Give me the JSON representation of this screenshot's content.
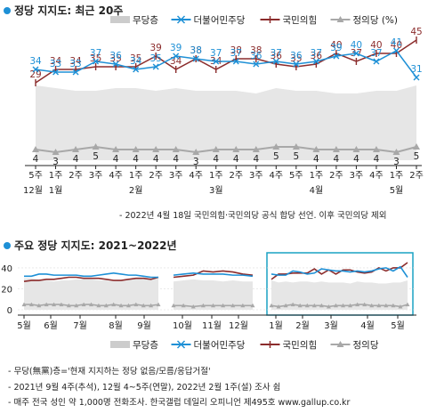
{
  "title1": "정당 지지도: 최근 20주",
  "title2": "주요 정당 지지도: 2021~2022년",
  "legend": [
    {
      "name": "무당층",
      "color": "#cccccc",
      "kind": "area"
    },
    {
      "name": "더불어민주당",
      "color": "#1e90d6",
      "kind": "line"
    },
    {
      "name": "국민의힘",
      "color": "#8b2c2c",
      "kind": "line"
    },
    {
      "name": "정의당 (%)",
      "color": "#a8a8a8",
      "kind": "line"
    }
  ],
  "legend2_last": "정의당",
  "note_top": "- 2022년 4월 18일 국민의힘·국민의당 공식 합당 선언. 이후 국민의당 제외",
  "notes_bottom": [
    "- 무당(無黨)층='현재 지지하는 정당 없음/모름/응답거절'",
    "- 2021년 9월 4주(추석), 12월 4~5주(연말), 2022년 2월 1주(설) 조사 쉼",
    "- 매주 전국 성인 약 1,000명 전화조사. 한국갤럽 데일리 오피니언 제495호 www.gallup.co.kr"
  ],
  "chart_data": [
    {
      "type": "line",
      "title": "정당 지지도: 최근 20주",
      "x": [
        "5주",
        "1주",
        "2주",
        "3주",
        "4주",
        "1주",
        "2주",
        "3주",
        "4주",
        "1주",
        "2주",
        "3주",
        "4주",
        "5주",
        "1주",
        "2주",
        "3주",
        "4주",
        "1주",
        "2주"
      ],
      "month_labels": [
        {
          "label": "12월",
          "index": 0
        },
        {
          "label": "1월",
          "index": 1
        },
        {
          "label": "2월",
          "index": 5
        },
        {
          "label": "3월",
          "index": 9
        },
        {
          "label": "4월",
          "index": 14
        },
        {
          "label": "5월",
          "index": 18
        }
      ],
      "series": [
        {
          "name": "무당층",
          "values": [
            28,
            27,
            26,
            26,
            27,
            27,
            26,
            27,
            26,
            26,
            26,
            25,
            27,
            26,
            26,
            25,
            25,
            26,
            26,
            28
          ]
        },
        {
          "name": "더불어민주당",
          "values": [
            34,
            33,
            33,
            37,
            36,
            34,
            35,
            39,
            38,
            37,
            37,
            36,
            37,
            36,
            37,
            39,
            40,
            37,
            41,
            31
          ]
        },
        {
          "name": "국민의힘",
          "values": [
            29,
            34,
            34,
            35,
            35,
            35,
            39,
            34,
            38,
            34,
            38,
            38,
            36,
            35,
            36,
            40,
            37,
            40,
            40,
            45
          ]
        },
        {
          "name": "정의당 (%)",
          "values": [
            4,
            3,
            4,
            5,
            4,
            4,
            4,
            4,
            3,
            4,
            4,
            4,
            5,
            5,
            4,
            4,
            4,
            4,
            3,
            5
          ]
        }
      ],
      "ylim": [
        0,
        48
      ]
    },
    {
      "type": "line",
      "title": "주요 정당 지지도: 2021~2022년",
      "x_months": [
        "5월",
        "6월",
        "7월",
        "8월",
        "9월",
        "10월",
        "11월",
        "12월",
        "1월",
        "2월",
        "3월",
        "4월",
        "5월"
      ],
      "yticks": [
        0,
        20,
        40
      ],
      "ylim": [
        0,
        45
      ],
      "series": [
        {
          "name": "무당층",
          "segments": [
            [
              30,
              30,
              29,
              28,
              27,
              28,
              28,
              29,
              29,
              29,
              28,
              28,
              27,
              28,
              29,
              30,
              29,
              30,
              30
            ],
            [
              27,
              28,
              29,
              28,
              28,
              27,
              28,
              27,
              27
            ],
            [
              28,
              26,
              27,
              26,
              27,
              27,
              26,
              27,
              26,
              26,
              26,
              25,
              27,
              26,
              26,
              25,
              25,
              26,
              26,
              28
            ]
          ]
        },
        {
          "name": "더불어민주당",
          "segments": [
            [
              32,
              32,
              34,
              34,
              33,
              33,
              33,
              33,
              32,
              32,
              33,
              34,
              35,
              34,
              33,
              33,
              32,
              31,
              31
            ],
            [
              33,
              34,
              35,
              34,
              34,
              34,
              33,
              33,
              32
            ],
            [
              34,
              33,
              33,
              37,
              36,
              34,
              35,
              39,
              38,
              37,
              37,
              36,
              37,
              36,
              37,
              39,
              40,
              37,
              41,
              31
            ]
          ]
        },
        {
          "name": "국민의힘",
          "segments": [
            [
              27,
              28,
              28,
              29,
              29,
              30,
              31,
              31,
              30,
              30,
              30,
              29,
              28,
              28,
              29,
              30,
              30,
              29,
              31
            ],
            [
              31,
              32,
              33,
              37,
              36,
              37,
              36,
              34,
              33
            ],
            [
              29,
              34,
              34,
              35,
              35,
              35,
              39,
              34,
              38,
              34,
              38,
              38,
              36,
              35,
              36,
              40,
              37,
              40,
              40,
              45
            ]
          ]
        },
        {
          "name": "정의당 (%)",
          "segments": [
            [
              5,
              5,
              4,
              5,
              5,
              5,
              4,
              4,
              5,
              5,
              4,
              4,
              5,
              4,
              4,
              5,
              4,
              4,
              5
            ],
            [
              4,
              4,
              3,
              4,
              4,
              4,
              4,
              4,
              4
            ],
            [
              4,
              3,
              4,
              5,
              4,
              4,
              4,
              4,
              3,
              4,
              4,
              4,
              5,
              5,
              4,
              4,
              4,
              4,
              3,
              5
            ]
          ]
        }
      ]
    }
  ]
}
